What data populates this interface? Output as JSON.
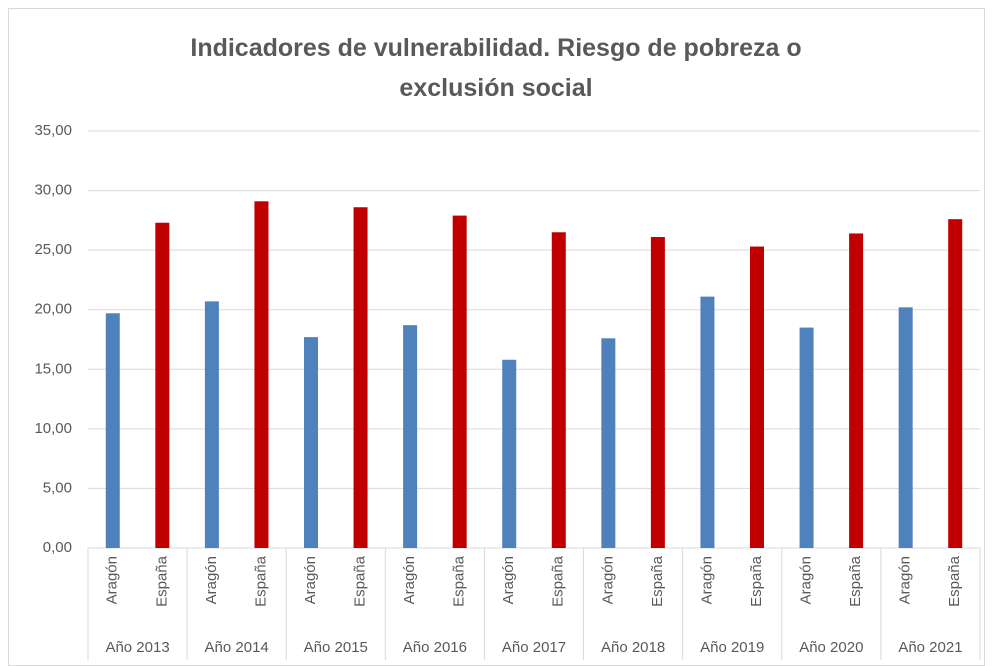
{
  "chart_data": {
    "type": "bar",
    "title": "Indicadores de vulnerabilidad. Riesgo de pobreza o exclusión social",
    "categories": [
      "Año 2013",
      "Año 2014",
      "Año 2015",
      "Año 2016",
      "Año 2017",
      "Año 2018",
      "Año 2019",
      "Año 2020",
      "Año 2021"
    ],
    "series": [
      {
        "name": "Aragón",
        "color": "#4f81bd",
        "values": [
          19.7,
          20.7,
          17.7,
          18.7,
          15.8,
          17.6,
          21.1,
          18.5,
          20.2
        ]
      },
      {
        "name": "España",
        "color": "#c00000",
        "values": [
          27.3,
          29.1,
          28.6,
          27.9,
          26.5,
          26.1,
          25.3,
          26.4,
          27.6
        ]
      }
    ],
    "ylim": [
      0,
      35
    ],
    "yticks": [
      {
        "value": 0,
        "label": "0,00"
      },
      {
        "value": 5,
        "label": "5,00"
      },
      {
        "value": 10,
        "label": "10,00"
      },
      {
        "value": 15,
        "label": "15,00"
      },
      {
        "value": 20,
        "label": "20,00"
      },
      {
        "value": 25,
        "label": "25,00"
      },
      {
        "value": 30,
        "label": "30,00"
      },
      {
        "value": 35,
        "label": "35,00"
      }
    ],
    "grid": true
  }
}
